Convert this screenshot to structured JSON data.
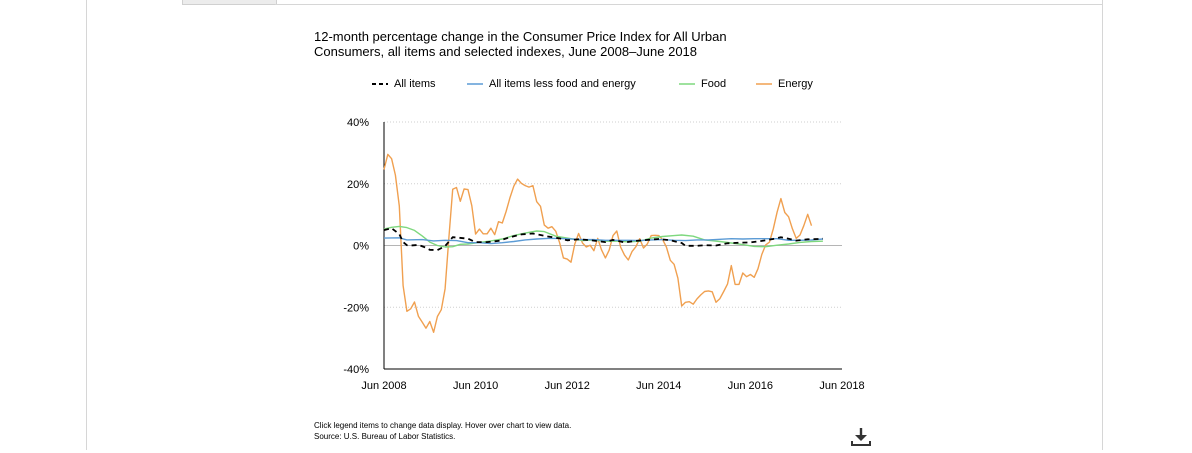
{
  "chart_data": {
    "type": "line",
    "title_line1": "12-month percentage change in the Consumer Price Index for All Urban",
    "title_line2": "Consumers, all items and selected indexes, June 2008–June 2018",
    "y_ticks": [
      "40%",
      "20%",
      "0%",
      "-20%",
      "-40%"
    ],
    "x_ticks": [
      "Jun 2008",
      "Jun 2010",
      "Jun 2012",
      "Jun 2014",
      "Jun 2016",
      "Jun 2018"
    ],
    "ylim": [
      -40,
      40
    ],
    "xlim": [
      2008.4167,
      2018.4167
    ],
    "grid": true,
    "legend_position": "top",
    "series": [
      {
        "name": "All items",
        "color": "#000000",
        "dash": "dashed",
        "points": [
          [
            2008.4167,
            5.0
          ],
          [
            2008.5833,
            5.6
          ],
          [
            2008.75,
            3.7
          ],
          [
            2008.8333,
            1.1
          ],
          [
            2008.9167,
            0.1
          ],
          [
            2009.0,
            0.0
          ],
          [
            2009.1667,
            0.2
          ],
          [
            2009.3333,
            -0.7
          ],
          [
            2009.4167,
            -1.4
          ],
          [
            2009.5833,
            -1.5
          ],
          [
            2009.75,
            -0.2
          ],
          [
            2009.9167,
            2.7
          ],
          [
            2010.0,
            2.6
          ],
          [
            2010.25,
            2.2
          ],
          [
            2010.4167,
            1.1
          ],
          [
            2010.6667,
            1.1
          ],
          [
            2010.9167,
            1.5
          ],
          [
            2011.1667,
            2.7
          ],
          [
            2011.4167,
            3.6
          ],
          [
            2011.6667,
            3.9
          ],
          [
            2011.8333,
            3.4
          ],
          [
            2012.0,
            2.9
          ],
          [
            2012.25,
            2.3
          ],
          [
            2012.4167,
            1.7
          ],
          [
            2012.6667,
            2.0
          ],
          [
            2012.8333,
            1.8
          ],
          [
            2013.0,
            1.6
          ],
          [
            2013.25,
            1.1
          ],
          [
            2013.4167,
            1.8
          ],
          [
            2013.6667,
            1.0
          ],
          [
            2013.9167,
            1.5
          ],
          [
            2014.1667,
            1.8
          ],
          [
            2014.4167,
            2.1
          ],
          [
            2014.6667,
            1.7
          ],
          [
            2014.9167,
            0.8
          ],
          [
            2015.0,
            -0.1
          ],
          [
            2015.25,
            -0.1
          ],
          [
            2015.4167,
            0.1
          ],
          [
            2015.6667,
            0.0
          ],
          [
            2015.9167,
            0.7
          ],
          [
            2016.1667,
            0.9
          ],
          [
            2016.4167,
            1.0
          ],
          [
            2016.6667,
            1.5
          ],
          [
            2016.9167,
            2.1
          ],
          [
            2017.0833,
            2.7
          ],
          [
            2017.25,
            2.2
          ],
          [
            2017.4167,
            1.6
          ],
          [
            2017.6667,
            2.0
          ],
          [
            2017.9167,
            2.1
          ],
          [
            2018.0,
            2.2
          ]
        ]
      },
      {
        "name": "All items less food and energy",
        "color": "#5b9bd5",
        "dash": "solid",
        "points": [
          [
            2008.4167,
            2.4
          ],
          [
            2008.75,
            2.5
          ],
          [
            2008.9167,
            1.8
          ],
          [
            2009.25,
            1.9
          ],
          [
            2009.5,
            1.5
          ],
          [
            2009.75,
            1.7
          ],
          [
            2010.0,
            1.6
          ],
          [
            2010.25,
            0.9
          ],
          [
            2010.5,
            0.9
          ],
          [
            2010.75,
            0.6
          ],
          [
            2011.0,
            0.9
          ],
          [
            2011.25,
            1.3
          ],
          [
            2011.5,
            1.8
          ],
          [
            2011.75,
            2.1
          ],
          [
            2012.0,
            2.3
          ],
          [
            2012.25,
            2.3
          ],
          [
            2012.5,
            2.1
          ],
          [
            2012.75,
            1.9
          ],
          [
            2013.0,
            1.9
          ],
          [
            2013.25,
            1.7
          ],
          [
            2013.5,
            1.7
          ],
          [
            2013.75,
            1.7
          ],
          [
            2014.0,
            1.6
          ],
          [
            2014.25,
            1.8
          ],
          [
            2014.5,
            1.9
          ],
          [
            2014.75,
            1.7
          ],
          [
            2015.0,
            1.6
          ],
          [
            2015.25,
            1.8
          ],
          [
            2015.5,
            1.8
          ],
          [
            2015.75,
            2.0
          ],
          [
            2016.0,
            2.2
          ],
          [
            2016.25,
            2.1
          ],
          [
            2016.5,
            2.2
          ],
          [
            2016.75,
            2.2
          ],
          [
            2017.0,
            2.2
          ],
          [
            2017.25,
            1.7
          ],
          [
            2017.5,
            1.7
          ],
          [
            2017.75,
            1.8
          ],
          [
            2018.0,
            2.1
          ]
        ]
      },
      {
        "name": "Food",
        "color": "#7ed87e",
        "dash": "solid",
        "points": [
          [
            2008.4167,
            5.3
          ],
          [
            2008.5833,
            5.9
          ],
          [
            2008.75,
            6.2
          ],
          [
            2008.9167,
            5.8
          ],
          [
            2009.0833,
            4.9
          ],
          [
            2009.25,
            3.1
          ],
          [
            2009.4167,
            1.1
          ],
          [
            2009.5833,
            0.0
          ],
          [
            2009.75,
            -0.5
          ],
          [
            2009.9167,
            -0.4
          ],
          [
            2010.0833,
            0.4
          ],
          [
            2010.25,
            0.5
          ],
          [
            2010.5,
            1.0
          ],
          [
            2010.75,
            1.5
          ],
          [
            2011.0,
            2.1
          ],
          [
            2011.25,
            3.2
          ],
          [
            2011.5,
            4.0
          ],
          [
            2011.75,
            4.7
          ],
          [
            2011.9167,
            4.5
          ],
          [
            2012.1667,
            3.0
          ],
          [
            2012.4167,
            2.4
          ],
          [
            2012.75,
            1.6
          ],
          [
            2013.0,
            1.8
          ],
          [
            2013.25,
            1.4
          ],
          [
            2013.5,
            1.4
          ],
          [
            2013.75,
            1.2
          ],
          [
            2014.0,
            1.4
          ],
          [
            2014.25,
            2.4
          ],
          [
            2014.5,
            2.9
          ],
          [
            2014.75,
            3.2
          ],
          [
            2014.9167,
            3.4
          ],
          [
            2015.1667,
            3.0
          ],
          [
            2015.4167,
            1.8
          ],
          [
            2015.75,
            1.3
          ],
          [
            2016.0,
            0.8
          ],
          [
            2016.25,
            0.3
          ],
          [
            2016.5,
            -0.3
          ],
          [
            2016.75,
            -0.4
          ],
          [
            2017.0,
            0.1
          ],
          [
            2017.25,
            0.5
          ],
          [
            2017.5,
            1.0
          ],
          [
            2017.75,
            1.3
          ],
          [
            2018.0,
            1.4
          ]
        ]
      },
      {
        "name": "Energy",
        "color": "#f0a050",
        "dash": "solid",
        "points": [
          [
            2008.4167,
            24.6
          ],
          [
            2008.5,
            29.5
          ],
          [
            2008.5833,
            28.1
          ],
          [
            2008.6667,
            22.8
          ],
          [
            2008.75,
            12.8
          ],
          [
            2008.8333,
            -13.0
          ],
          [
            2008.9167,
            -21.3
          ],
          [
            2009.0,
            -20.5
          ],
          [
            2009.0833,
            -18.3
          ],
          [
            2009.1667,
            -22.9
          ],
          [
            2009.25,
            -24.8
          ],
          [
            2009.3333,
            -26.8
          ],
          [
            2009.4167,
            -24.6
          ],
          [
            2009.5,
            -28.1
          ],
          [
            2009.5833,
            -23.0
          ],
          [
            2009.6667,
            -20.8
          ],
          [
            2009.75,
            -14.0
          ],
          [
            2009.8333,
            2.6
          ],
          [
            2009.9167,
            18.2
          ],
          [
            2010.0,
            18.8
          ],
          [
            2010.0833,
            14.3
          ],
          [
            2010.1667,
            18.3
          ],
          [
            2010.25,
            18.1
          ],
          [
            2010.3333,
            12.9
          ],
          [
            2010.4167,
            3.7
          ],
          [
            2010.5,
            5.3
          ],
          [
            2010.5833,
            3.8
          ],
          [
            2010.6667,
            3.8
          ],
          [
            2010.75,
            5.6
          ],
          [
            2010.8333,
            3.5
          ],
          [
            2010.9167,
            7.7
          ],
          [
            2011.0,
            7.3
          ],
          [
            2011.0833,
            11.0
          ],
          [
            2011.1667,
            15.5
          ],
          [
            2011.25,
            19.2
          ],
          [
            2011.3333,
            21.5
          ],
          [
            2011.4167,
            20.1
          ],
          [
            2011.5,
            19.4
          ],
          [
            2011.5833,
            18.9
          ],
          [
            2011.6667,
            19.4
          ],
          [
            2011.75,
            14.2
          ],
          [
            2011.8333,
            12.7
          ],
          [
            2011.9167,
            6.6
          ],
          [
            2012.0,
            5.6
          ],
          [
            2012.0833,
            6.1
          ],
          [
            2012.1667,
            4.6
          ],
          [
            2012.25,
            0.9
          ],
          [
            2012.3333,
            -4.0
          ],
          [
            2012.4167,
            -4.4
          ],
          [
            2012.5,
            -5.4
          ],
          [
            2012.5833,
            0.5
          ],
          [
            2012.6667,
            3.9
          ],
          [
            2012.75,
            0.8
          ],
          [
            2012.8333,
            -0.5
          ],
          [
            2012.9167,
            0.1
          ],
          [
            2013.0,
            -1.7
          ],
          [
            2013.0833,
            2.3
          ],
          [
            2013.1667,
            -1.4
          ],
          [
            2013.25,
            -4.0
          ],
          [
            2013.3333,
            -1.5
          ],
          [
            2013.4167,
            3.2
          ],
          [
            2013.5,
            4.7
          ],
          [
            2013.5833,
            -0.5
          ],
          [
            2013.6667,
            -3.1
          ],
          [
            2013.75,
            -4.7
          ],
          [
            2013.8333,
            -1.9
          ],
          [
            2013.9167,
            -0.4
          ],
          [
            2014.0,
            2.2
          ],
          [
            2014.0833,
            -0.8
          ],
          [
            2014.1667,
            0.5
          ],
          [
            2014.25,
            3.2
          ],
          [
            2014.3333,
            3.3
          ],
          [
            2014.4167,
            3.2
          ],
          [
            2014.5,
            1.9
          ],
          [
            2014.5833,
            -0.5
          ],
          [
            2014.6667,
            -4.8
          ],
          [
            2014.75,
            -6.1
          ],
          [
            2014.8333,
            -10.6
          ],
          [
            2014.9167,
            -19.6
          ],
          [
            2015.0,
            -18.4
          ],
          [
            2015.0833,
            -18.2
          ],
          [
            2015.1667,
            -19.0
          ],
          [
            2015.25,
            -17.3
          ],
          [
            2015.3333,
            -16.0
          ],
          [
            2015.4167,
            -14.9
          ],
          [
            2015.5,
            -14.7
          ],
          [
            2015.5833,
            -15.0
          ],
          [
            2015.6667,
            -18.4
          ],
          [
            2015.75,
            -17.2
          ],
          [
            2015.8333,
            -14.9
          ],
          [
            2015.9167,
            -12.5
          ],
          [
            2016.0,
            -6.5
          ],
          [
            2016.0833,
            -12.6
          ],
          [
            2016.1667,
            -12.6
          ],
          [
            2016.25,
            -8.9
          ],
          [
            2016.3333,
            -10.1
          ],
          [
            2016.4167,
            -9.4
          ],
          [
            2016.5,
            -10.3
          ],
          [
            2016.5833,
            -7.5
          ],
          [
            2016.6667,
            -2.9
          ],
          [
            2016.75,
            0.2
          ],
          [
            2016.8333,
            1.1
          ],
          [
            2016.9167,
            5.4
          ],
          [
            2017.0,
            10.8
          ],
          [
            2017.0833,
            15.2
          ],
          [
            2017.1667,
            10.7
          ],
          [
            2017.25,
            9.3
          ],
          [
            2017.3333,
            5.4
          ],
          [
            2017.4167,
            2.3
          ],
          [
            2017.5,
            3.4
          ],
          [
            2017.5833,
            6.4
          ],
          [
            2017.6667,
            10.1
          ],
          [
            2017.75,
            6.4
          ]
        ]
      }
    ]
  },
  "footnote_line1": "Click legend items to change data display. Hover over chart to view data.",
  "footnote_line2": "Source: U.S. Bureau of Labor Statistics.",
  "download_icon": "download-icon"
}
